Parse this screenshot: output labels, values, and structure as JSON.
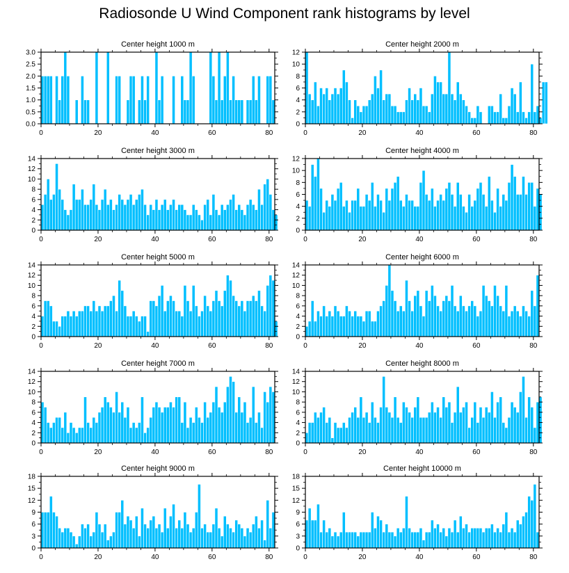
{
  "title": "Radiosonde U Wind Component rank histograms by level",
  "colors": {
    "bar": "#00BFFF",
    "bar_edge": "#ffffff",
    "axis": "#000000"
  },
  "chart_data": [
    {
      "type": "bar",
      "title": "Center height 1000 m",
      "xlim": [
        0,
        82
      ],
      "ylim": [
        0,
        3
      ],
      "yticks": [
        0,
        0.5,
        1,
        1.5,
        2,
        2.5,
        3
      ],
      "ytick_labels": [
        "0.0",
        "0.5",
        "1.0",
        "1.5",
        "2.0",
        "2.5",
        "3.0"
      ],
      "xticks": [
        0,
        20,
        40,
        60,
        80
      ],
      "values": [
        2,
        2,
        2,
        2,
        0,
        2,
        1,
        2,
        3,
        2,
        0,
        0,
        1,
        0,
        2,
        1,
        1,
        0,
        0,
        3,
        0,
        0,
        0,
        3,
        0,
        0,
        2,
        2,
        0,
        0,
        1,
        2,
        2,
        0,
        1,
        2,
        1,
        2,
        0,
        0,
        3,
        1,
        2,
        0,
        0,
        0,
        2,
        0,
        0,
        2,
        1,
        1,
        3,
        2,
        0,
        0,
        0,
        0,
        0,
        3,
        2,
        1,
        3,
        1,
        2,
        3,
        1,
        2,
        1,
        1,
        1,
        0,
        1,
        1,
        2,
        1,
        2,
        0,
        0,
        2,
        2,
        1
      ]
    },
    {
      "type": "bar",
      "title": "Center height 2000 m",
      "xlim": [
        0,
        82
      ],
      "ylim": [
        0,
        12
      ],
      "yticks": [
        0,
        2,
        4,
        6,
        8,
        10,
        12
      ],
      "ytick_labels": [
        "0",
        "2",
        "4",
        "6",
        "8",
        "10",
        "12"
      ],
      "xticks": [
        0,
        20,
        40,
        60,
        80
      ],
      "values": [
        12,
        5,
        4,
        7,
        3,
        6,
        5,
        6,
        4,
        5,
        6,
        5,
        6,
        9,
        7,
        4,
        1,
        4,
        3,
        2,
        3,
        3,
        4,
        5,
        8,
        6,
        9,
        4,
        5,
        5,
        3,
        3,
        2,
        2,
        2,
        4,
        6,
        4,
        5,
        4,
        6,
        3,
        3,
        2,
        5,
        8,
        7,
        7,
        5,
        5,
        12,
        5,
        4,
        7,
        5,
        4,
        3,
        2,
        1,
        1,
        3,
        2,
        0,
        0,
        3,
        3,
        2,
        2,
        5,
        1,
        1,
        3,
        6,
        5,
        2,
        7,
        2,
        1,
        2,
        10,
        2,
        3,
        1,
        7,
        7
      ]
    },
    {
      "type": "bar",
      "title": "Center height 3000 m",
      "xlim": [
        0,
        82
      ],
      "ylim": [
        0,
        14
      ],
      "yticks": [
        0,
        2,
        4,
        6,
        8,
        10,
        12,
        14
      ],
      "ytick_labels": [
        "0",
        "2",
        "4",
        "6",
        "8",
        "10",
        "12",
        "14"
      ],
      "xticks": [
        0,
        20,
        40,
        60,
        80
      ],
      "values": [
        5,
        7,
        10,
        6,
        7,
        13,
        8,
        6,
        4,
        3,
        4,
        9,
        6,
        6,
        8,
        5,
        5,
        6,
        9,
        5,
        4,
        6,
        8,
        5,
        6,
        4,
        5,
        7,
        6,
        5,
        6,
        7,
        5,
        6,
        7,
        8,
        5,
        3,
        5,
        4,
        6,
        4,
        5,
        6,
        4,
        5,
        6,
        4,
        5,
        5,
        4,
        3,
        3,
        5,
        4,
        3,
        2,
        5,
        6,
        3,
        7,
        4,
        3,
        5,
        4,
        5,
        6,
        7,
        4,
        5,
        4,
        3,
        5,
        6,
        5,
        4,
        8,
        5,
        9,
        10,
        7,
        4,
        3
      ]
    },
    {
      "type": "bar",
      "title": "Center height 4000 m",
      "xlim": [
        0,
        82
      ],
      "ylim": [
        0,
        12
      ],
      "yticks": [
        0,
        2,
        4,
        6,
        8,
        10,
        12
      ],
      "ytick_labels": [
        "0",
        "2",
        "4",
        "6",
        "8",
        "10",
        "12"
      ],
      "xticks": [
        0,
        20,
        40,
        60,
        80
      ],
      "values": [
        5,
        4,
        11,
        9,
        12,
        7,
        3,
        5,
        4,
        6,
        5,
        7,
        8,
        4,
        5,
        3,
        5,
        5,
        7,
        4,
        4,
        6,
        5,
        8,
        4,
        6,
        5,
        3,
        7,
        5,
        7,
        8,
        9,
        5,
        4,
        6,
        5,
        5,
        4,
        4,
        8,
        10,
        6,
        5,
        7,
        4,
        5,
        6,
        5,
        7,
        8,
        6,
        4,
        8,
        6,
        4,
        3,
        6,
        4,
        5,
        7,
        8,
        6,
        4,
        9,
        5,
        3,
        7,
        4,
        6,
        5,
        8,
        11,
        9,
        6,
        6,
        9,
        6,
        8,
        8,
        4,
        7,
        6
      ]
    },
    {
      "type": "bar",
      "title": "Center height 5000 m",
      "xlim": [
        0,
        82
      ],
      "ylim": [
        0,
        14
      ],
      "yticks": [
        0,
        2,
        4,
        6,
        8,
        10,
        12,
        14
      ],
      "ytick_labels": [
        "0",
        "2",
        "4",
        "6",
        "8",
        "10",
        "12",
        "14"
      ],
      "xticks": [
        0,
        20,
        40,
        60,
        80
      ],
      "values": [
        4,
        7,
        7,
        6,
        3,
        3,
        2,
        4,
        4,
        5,
        4,
        5,
        4,
        5,
        5,
        6,
        6,
        5,
        7,
        5,
        6,
        5,
        6,
        6,
        7,
        8,
        5,
        11,
        9,
        6,
        4,
        4,
        5,
        4,
        3,
        4,
        4,
        1,
        7,
        7,
        6,
        8,
        10,
        5,
        7,
        8,
        7,
        5,
        5,
        4,
        10,
        7,
        5,
        10,
        6,
        4,
        5,
        8,
        6,
        5,
        7,
        9,
        7,
        6,
        9,
        12,
        11,
        8,
        7,
        6,
        7,
        5,
        7,
        7,
        8,
        7,
        9,
        6,
        5,
        10,
        12,
        11,
        3
      ]
    },
    {
      "type": "bar",
      "title": "Center height 6000 m",
      "xlim": [
        0,
        82
      ],
      "ylim": [
        0,
        14
      ],
      "yticks": [
        0,
        2,
        4,
        6,
        8,
        10,
        12,
        14
      ],
      "ytick_labels": [
        "0",
        "2",
        "4",
        "6",
        "8",
        "10",
        "12",
        "14"
      ],
      "xticks": [
        0,
        20,
        40,
        60,
        80
      ],
      "values": [
        2,
        3,
        7,
        3,
        5,
        4,
        6,
        4,
        5,
        4,
        6,
        5,
        4,
        4,
        6,
        5,
        4,
        5,
        4,
        4,
        3,
        5,
        5,
        3,
        3,
        5,
        6,
        7,
        10,
        14,
        9,
        7,
        5,
        6,
        5,
        11,
        7,
        5,
        8,
        9,
        6,
        4,
        9,
        7,
        10,
        8,
        6,
        5,
        7,
        8,
        7,
        10,
        6,
        5,
        8,
        6,
        5,
        6,
        7,
        6,
        4,
        5,
        10,
        8,
        7,
        6,
        10,
        8,
        6,
        5,
        10,
        4,
        5,
        6,
        5,
        4,
        6,
        5,
        4,
        9,
        6,
        12
      ]
    },
    {
      "type": "bar",
      "title": "Center height 7000 m",
      "xlim": [
        0,
        82
      ],
      "ylim": [
        0,
        14
      ],
      "yticks": [
        0,
        2,
        4,
        6,
        8,
        10,
        12,
        14
      ],
      "ytick_labels": [
        "0",
        "2",
        "4",
        "6",
        "8",
        "10",
        "12",
        "14"
      ],
      "xticks": [
        0,
        20,
        40,
        60,
        80
      ],
      "values": [
        8,
        7,
        4,
        3,
        4,
        5,
        5,
        3,
        6,
        2,
        4,
        3,
        2,
        3,
        3,
        9,
        4,
        3,
        5,
        4,
        6,
        7,
        9,
        8,
        7,
        6,
        10,
        6,
        8,
        5,
        7,
        3,
        4,
        3,
        4,
        9,
        2,
        3,
        5,
        7,
        8,
        7,
        6,
        7,
        7,
        8,
        7,
        9,
        9,
        4,
        8,
        3,
        5,
        4,
        7,
        5,
        4,
        8,
        5,
        6,
        8,
        11,
        7,
        6,
        8,
        11,
        13,
        12,
        6,
        9,
        6,
        8,
        4,
        5,
        11,
        4,
        6,
        3,
        10,
        8,
        11,
        10
      ]
    },
    {
      "type": "bar",
      "title": "Center height 8000 m",
      "xlim": [
        0,
        82
      ],
      "ylim": [
        0,
        14
      ],
      "yticks": [
        0,
        2,
        4,
        6,
        8,
        10,
        12,
        14
      ],
      "ytick_labels": [
        "0",
        "2",
        "4",
        "6",
        "8",
        "10",
        "12",
        "14"
      ],
      "xticks": [
        0,
        20,
        40,
        60,
        80
      ],
      "values": [
        2,
        4,
        4,
        6,
        5,
        6,
        7,
        4,
        5,
        1,
        4,
        3,
        3,
        4,
        3,
        5,
        6,
        7,
        5,
        9,
        5,
        6,
        4,
        8,
        5,
        4,
        7,
        13,
        7,
        6,
        5,
        9,
        5,
        4,
        8,
        7,
        6,
        5,
        7,
        9,
        5,
        5,
        5,
        6,
        8,
        6,
        7,
        5,
        9,
        7,
        8,
        4,
        6,
        11,
        6,
        7,
        8,
        3,
        5,
        8,
        4,
        7,
        5,
        7,
        6,
        10,
        5,
        8,
        9,
        4,
        3,
        5,
        8,
        7,
        6,
        10,
        13,
        5,
        9,
        7,
        3,
        8,
        9
      ]
    },
    {
      "type": "bar",
      "title": "Center height 9000 m",
      "xlim": [
        0,
        82
      ],
      "ylim": [
        0,
        18
      ],
      "yticks": [
        0,
        3,
        6,
        9,
        12,
        15,
        18
      ],
      "ytick_labels": [
        "0",
        "3",
        "6",
        "9",
        "12",
        "15",
        "18"
      ],
      "xticks": [
        0,
        20,
        40,
        60,
        80
      ],
      "values": [
        9,
        9,
        9,
        13,
        9,
        8,
        5,
        4,
        5,
        5,
        4,
        3,
        1,
        3,
        6,
        5,
        6,
        3,
        4,
        9,
        6,
        4,
        6,
        2,
        3,
        4,
        9,
        9,
        12,
        6,
        8,
        7,
        5,
        8,
        3,
        10,
        6,
        5,
        7,
        8,
        5,
        6,
        4,
        10,
        5,
        8,
        11,
        5,
        7,
        5,
        9,
        6,
        4,
        5,
        9,
        16,
        5,
        6,
        4,
        4,
        6,
        10,
        5,
        3,
        8,
        6,
        5,
        4,
        7,
        6,
        5,
        3,
        5,
        4,
        6,
        8,
        5,
        7,
        2,
        12,
        5,
        9
      ]
    },
    {
      "type": "bar",
      "title": "Center height 10000 m",
      "xlim": [
        0,
        82
      ],
      "ylim": [
        0,
        18
      ],
      "yticks": [
        0,
        3,
        6,
        9,
        12,
        15,
        18
      ],
      "ytick_labels": [
        "0",
        "3",
        "6",
        "9",
        "12",
        "15",
        "18"
      ],
      "xticks": [
        0,
        20,
        40,
        60,
        80
      ],
      "values": [
        7,
        10,
        7,
        7,
        11,
        4,
        7,
        4,
        5,
        3,
        4,
        3,
        4,
        9,
        4,
        4,
        4,
        4,
        3,
        4,
        4,
        4,
        4,
        9,
        5,
        8,
        7,
        4,
        6,
        4,
        4,
        3,
        5,
        4,
        5,
        13,
        5,
        4,
        4,
        4,
        5,
        2,
        4,
        4,
        7,
        5,
        6,
        4,
        5,
        3,
        5,
        4,
        7,
        4,
        8,
        5,
        6,
        4,
        5,
        5,
        5,
        5,
        4,
        5,
        5,
        6,
        4,
        5,
        4,
        6,
        9,
        4,
        5,
        4,
        7,
        6,
        8,
        9,
        13,
        12,
        16,
        4
      ]
    }
  ]
}
